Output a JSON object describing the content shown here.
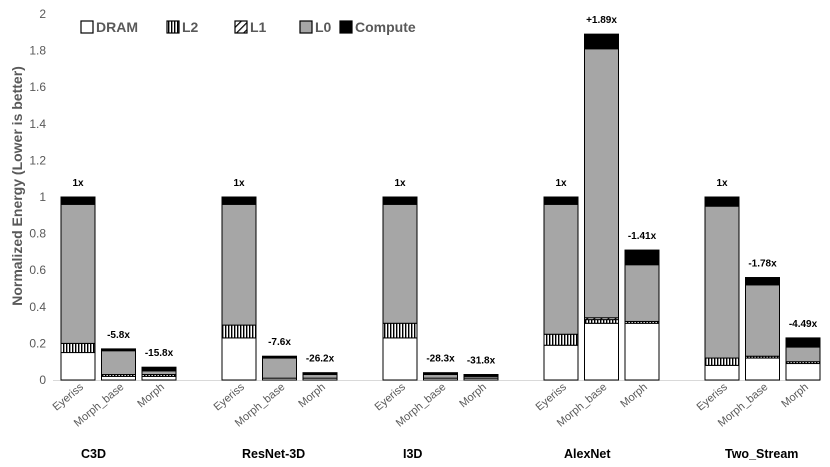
{
  "chart_data": {
    "type": "bar",
    "stacked": true,
    "title": "",
    "xlabel": "",
    "ylabel": "Normalized Energy (Lower is better)",
    "ylim": [
      0,
      2
    ],
    "yticks": [
      "0",
      "0.2",
      "0.4",
      "0.6",
      "0.8",
      "1",
      "1.2",
      "1.4",
      "1.6",
      "1.8",
      "2"
    ],
    "grid": false,
    "legend_position": "top-left",
    "groups": [
      "C3D",
      "ResNet-3D",
      "I3D",
      "AlexNet",
      "Two_Stream"
    ],
    "categories": [
      "Eyeriss",
      "Morph_base",
      "Morph"
    ],
    "series": [
      {
        "name": "DRAM",
        "color": "#ffffff",
        "pattern": "solid",
        "values": [
          [
            0.15,
            0.02,
            0.02
          ],
          [
            0.23,
            0.01,
            0.01
          ],
          [
            0.23,
            0.01,
            0.01
          ],
          [
            0.19,
            0.31,
            0.31
          ],
          [
            0.08,
            0.12,
            0.09
          ]
        ]
      },
      {
        "name": "L2",
        "color": "#a6a6a6",
        "pattern": "vertical",
        "values": [
          [
            0.05,
            0.01,
            0.01
          ],
          [
            0.07,
            0.0,
            0.0
          ],
          [
            0.08,
            0.0,
            0.0
          ],
          [
            0.06,
            0.02,
            0.01
          ],
          [
            0.04,
            0.01,
            0.01
          ]
        ]
      },
      {
        "name": "L1",
        "color": "#ffffff",
        "pattern": "diagonal",
        "values": [
          [
            0.0,
            0.0,
            0.0
          ],
          [
            0.0,
            0.0,
            0.0
          ],
          [
            0.0,
            0.0,
            0.0
          ],
          [
            0.0,
            0.01,
            0.0
          ],
          [
            0.0,
            0.0,
            0.0
          ]
        ]
      },
      {
        "name": "L0",
        "color": "#a6a6a6",
        "pattern": "solid",
        "values": [
          [
            0.76,
            0.13,
            0.02
          ],
          [
            0.66,
            0.11,
            0.02
          ],
          [
            0.65,
            0.02,
            0.01
          ],
          [
            0.71,
            1.47,
            0.31
          ],
          [
            0.83,
            0.39,
            0.08
          ]
        ]
      },
      {
        "name": "Compute",
        "color": "#000000",
        "pattern": "solid",
        "values": [
          [
            0.04,
            0.01,
            0.02
          ],
          [
            0.04,
            0.01,
            0.01
          ],
          [
            0.04,
            0.01,
            0.01
          ],
          [
            0.04,
            0.08,
            0.08
          ],
          [
            0.05,
            0.04,
            0.05
          ]
        ]
      }
    ],
    "annotations": [
      [
        "1x",
        "-5.8x",
        "-15.8x"
      ],
      [
        "1x",
        "-7.6x",
        "-26.2x"
      ],
      [
        "1x",
        "-28.3x",
        "-31.8x"
      ],
      [
        "1x",
        "+1.89x",
        "-1.41x"
      ],
      [
        "1x",
        "-1.78x",
        "-4.49x"
      ]
    ]
  }
}
